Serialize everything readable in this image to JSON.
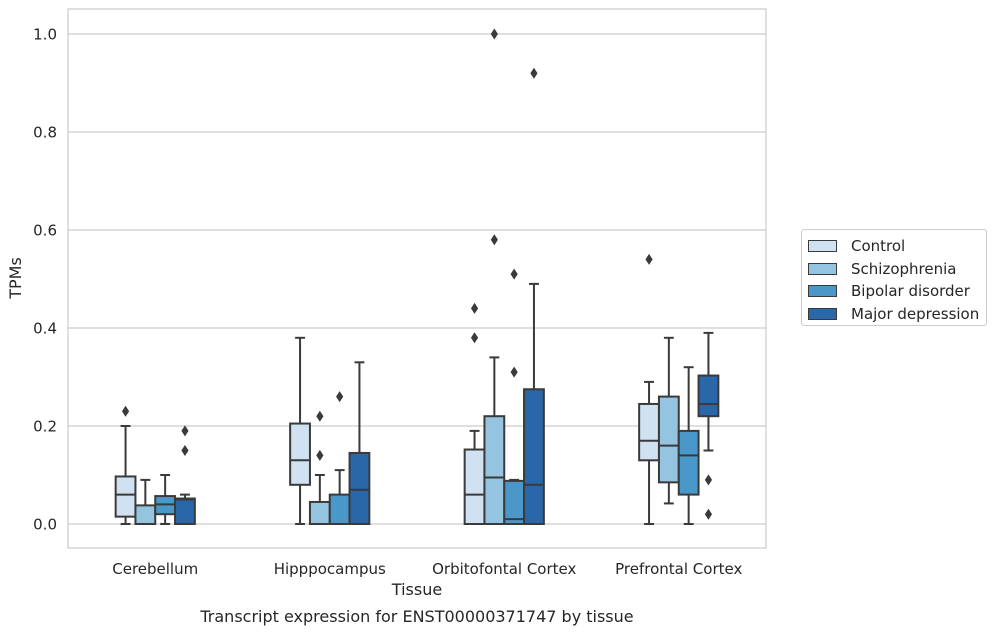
{
  "chart_data": {
    "type": "box",
    "title": "Transcript expression for ENST00000371747 by tissue",
    "xlabel": "Tissue",
    "ylabel": "TPMs",
    "ylim": [
      -0.048,
      1.05
    ],
    "yticks": [
      "0.0",
      "0.2",
      "0.4",
      "0.6",
      "0.8",
      "1.0"
    ],
    "grid": true,
    "legend_position": "right",
    "categories": [
      "Cerebellum",
      "Hipppocampus",
      "Orbitofontal Cortex",
      "Prefrontal Cortex"
    ],
    "series": [
      {
        "name": "Control",
        "color": "#d0e1f2",
        "boxes": [
          {
            "whisker_low": 0.0,
            "q1": 0.015,
            "median": 0.06,
            "q3": 0.097,
            "whisker_high": 0.2,
            "outliers": [
              0.23
            ]
          },
          {
            "whisker_low": 0.0,
            "q1": 0.08,
            "median": 0.13,
            "q3": 0.205,
            "whisker_high": 0.38,
            "outliers": []
          },
          {
            "whisker_low": 0.0,
            "q1": 0.0,
            "median": 0.06,
            "q3": 0.152,
            "whisker_high": 0.19,
            "outliers": [
              0.38,
              0.44
            ]
          },
          {
            "whisker_low": 0.0,
            "q1": 0.13,
            "median": 0.17,
            "q3": 0.245,
            "whisker_high": 0.29,
            "outliers": [
              0.54
            ]
          }
        ]
      },
      {
        "name": "Schizophrenia",
        "color": "#94c4df",
        "boxes": [
          {
            "whisker_low": 0.0,
            "q1": 0.0,
            "median": 0.0,
            "q3": 0.038,
            "whisker_high": 0.09,
            "outliers": []
          },
          {
            "whisker_low": 0.0,
            "q1": 0.0,
            "median": 0.0,
            "q3": 0.045,
            "whisker_high": 0.1,
            "outliers": [
              0.14,
              0.22
            ]
          },
          {
            "whisker_low": 0.0,
            "q1": 0.0,
            "median": 0.095,
            "q3": 0.22,
            "whisker_high": 0.34,
            "outliers": [
              0.58,
              1.0
            ]
          },
          {
            "whisker_low": 0.042,
            "q1": 0.085,
            "median": 0.16,
            "q3": 0.26,
            "whisker_high": 0.38,
            "outliers": []
          }
        ]
      },
      {
        "name": "Bipolar disorder",
        "color": "#4a98c9",
        "boxes": [
          {
            "whisker_low": 0.0,
            "q1": 0.02,
            "median": 0.04,
            "q3": 0.057,
            "whisker_high": 0.1,
            "outliers": []
          },
          {
            "whisker_low": 0.0,
            "q1": 0.0,
            "median": 0.0,
            "q3": 0.06,
            "whisker_high": 0.11,
            "outliers": [
              0.26
            ]
          },
          {
            "whisker_low": 0.0,
            "q1": 0.0,
            "median": 0.01,
            "q3": 0.088,
            "whisker_high": 0.09,
            "outliers": [
              0.31,
              0.51
            ]
          },
          {
            "whisker_low": 0.0,
            "q1": 0.06,
            "median": 0.14,
            "q3": 0.19,
            "whisker_high": 0.32,
            "outliers": []
          }
        ]
      },
      {
        "name": "Major depression",
        "color": "#2a67a9",
        "boxes": [
          {
            "whisker_low": 0.0,
            "q1": 0.0,
            "median": 0.05,
            "q3": 0.052,
            "whisker_high": 0.06,
            "outliers": [
              0.15,
              0.19
            ]
          },
          {
            "whisker_low": 0.0,
            "q1": 0.0,
            "median": 0.07,
            "q3": 0.145,
            "whisker_high": 0.33,
            "outliers": []
          },
          {
            "whisker_low": 0.0,
            "q1": 0.0,
            "median": 0.08,
            "q3": 0.275,
            "whisker_high": 0.49,
            "outliers": [
              0.92
            ]
          },
          {
            "whisker_low": 0.15,
            "q1": 0.22,
            "median": 0.245,
            "q3": 0.303,
            "whisker_high": 0.39,
            "outliers": [
              0.02,
              0.09
            ]
          }
        ]
      }
    ]
  }
}
